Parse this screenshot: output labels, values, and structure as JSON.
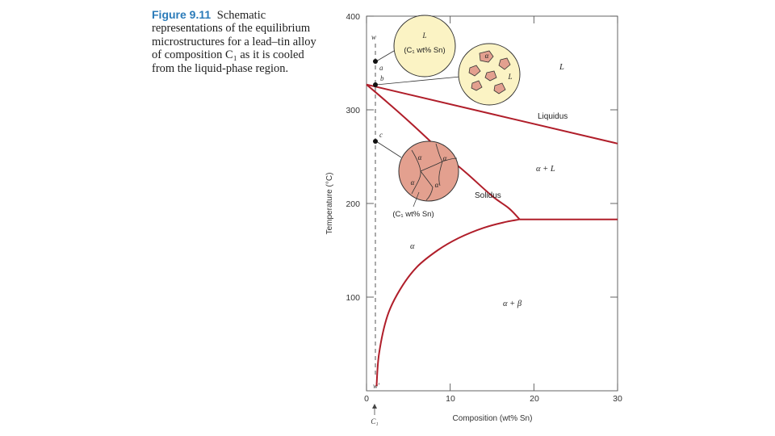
{
  "caption": {
    "figure_label": "Figure 9.11",
    "text": "Schematic representations of the equilibrium microstructures for a lead–tin alloy of composition C₁ as it is cooled from the liquid-phase region."
  },
  "chart_data": {
    "type": "line",
    "xlabel": "Composition (wt% Sn)",
    "ylabel": "Temperature (°C)",
    "xlim": [
      0,
      30
    ],
    "ylim": [
      0,
      400
    ],
    "x_ticks": [
      "0",
      "10",
      "20",
      "30"
    ],
    "y_ticks": [
      "100",
      "200",
      "300",
      "400"
    ],
    "series": [
      {
        "name": "Liquidus",
        "points": [
          [
            0,
            327
          ],
          [
            30,
            264
          ]
        ]
      },
      {
        "name": "Solidus",
        "points": [
          [
            0,
            327
          ],
          [
            3,
            304
          ],
          [
            6,
            280
          ],
          [
            9,
            255
          ],
          [
            12,
            232
          ],
          [
            15,
            208
          ],
          [
            17,
            195
          ],
          [
            18.3,
            183
          ]
        ]
      },
      {
        "name": "",
        "points": [
          [
            18.3,
            183
          ],
          [
            30,
            183
          ]
        ]
      },
      {
        "name": "",
        "points": [
          [
            1.2,
            5
          ],
          [
            1.5,
            40
          ],
          [
            2.5,
            80
          ],
          [
            4,
            108
          ],
          [
            6,
            132
          ],
          [
            8.5,
            150
          ],
          [
            11,
            163
          ],
          [
            14,
            174
          ],
          [
            16.5,
            180
          ],
          [
            18.3,
            183
          ]
        ]
      }
    ],
    "region_labels": {
      "L": "L",
      "alpha_plus_L": "α + L",
      "alpha": "α",
      "alpha_plus_beta": "α + β"
    },
    "curve_labels": {
      "liquidus": "Liquidus",
      "solidus": "Solidus"
    },
    "composition_line": {
      "x": 1,
      "top_label": "w",
      "bottom_label": "w′",
      "c1_label": "C₁"
    },
    "points": [
      {
        "label": "a",
        "x": 1,
        "y": 350
      },
      {
        "label": "b",
        "x": 1,
        "y": 327
      },
      {
        "label": "c",
        "x": 1,
        "y": 265
      }
    ],
    "microstructures": {
      "liquid": {
        "phase": "L",
        "composition": "(C₁ wt% Sn)"
      },
      "mixed": {
        "alpha": "α",
        "liquid": "L"
      },
      "solid": {
        "alpha": "α",
        "composition": "(C₁ wt% Sn)"
      }
    }
  },
  "colors": {
    "phase_line": "#b01e2a",
    "liquid_fill": "#fbf3c4",
    "alpha_fill": "#e3a08f",
    "figure_label": "#2b7bb9"
  }
}
